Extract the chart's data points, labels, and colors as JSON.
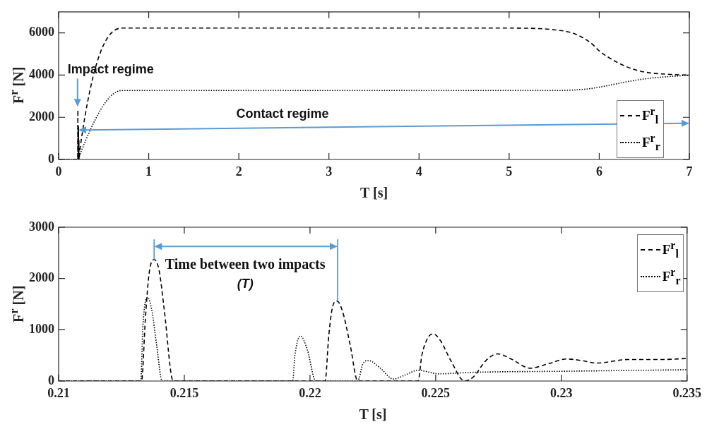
{
  "chart_data": [
    {
      "type": "line",
      "xlabel": "T [s]",
      "ylabel": "F$^{r}$ [N]",
      "xlim": [
        0,
        7
      ],
      "xticks": [
        0,
        1,
        2,
        3,
        4,
        5,
        6,
        7
      ],
      "ylim": [
        0,
        7000
      ],
      "yticks": [
        0,
        2000,
        4000,
        6000
      ],
      "legend": "right",
      "series": [
        {
          "name": "F$^{r}$$_{l}$",
          "color": "#000000",
          "line_style": "dashed",
          "x": [
            0,
            0.2,
            0.213,
            0.2138,
            0.2145,
            0.2206,
            0.2211,
            0.222,
            0.2243,
            0.2249,
            0.226,
            0.235,
            0.7,
            5.0,
            5.3,
            5.5,
            5.7,
            5.9,
            6.0,
            6.1,
            6.3,
            6.5,
            6.8,
            7
          ],
          "values": [
            0,
            0,
            0,
            2350,
            0,
            0,
            1560,
            0,
            0,
            920,
            0,
            440,
            6230,
            6230,
            6210,
            6150,
            6000,
            5550,
            5150,
            4850,
            4400,
            4150,
            4030,
            4000
          ]
        },
        {
          "name": "F$^{r}$$_{r}$",
          "color": "#000000",
          "line_style": "dotted",
          "x": [
            0,
            0.2133,
            0.2135,
            0.2141,
            0.2193,
            0.2196,
            0.2202,
            0.235,
            0.7,
            5.5,
            5.7,
            5.9,
            6.1,
            6.3,
            6.5,
            6.8,
            7
          ],
          "values": [
            0,
            0,
            1630,
            0,
            0,
            880,
            0,
            220,
            3270,
            3270,
            3290,
            3360,
            3510,
            3680,
            3820,
            3940,
            3990
          ]
        }
      ],
      "annotations": [
        {
          "text": "Impact regime",
          "x": 0.21,
          "y": 2500
        },
        "Contact regime"
      ]
    },
    {
      "type": "line",
      "xlabel": "T [s]",
      "ylabel": "F$^{r}$ [N]",
      "xlim": [
        0.21,
        0.235
      ],
      "xticks": [
        0.21,
        0.215,
        0.22,
        0.225,
        0.23,
        0.235
      ],
      "ylim": [
        0,
        3000
      ],
      "yticks": [
        0,
        1000,
        2000,
        3000
      ],
      "legend": "top right",
      "series": [
        {
          "name": "F$^{r}$$_{l}$",
          "color": "#000000",
          "line_style": "dashed",
          "x": [
            0.21,
            0.2133,
            0.21345,
            0.2136,
            0.2138,
            0.214,
            0.2142,
            0.21456,
            0.2206,
            0.22075,
            0.2209,
            0.22107,
            0.2213,
            0.2216,
            0.2219,
            0.2243,
            0.22445,
            0.2247,
            0.2249,
            0.2252,
            0.2256,
            0.22615,
            0.2265,
            0.227,
            0.22746,
            0.228,
            0.22876,
            0.2295,
            0.23021,
            0.2308,
            0.23138,
            0.23268,
            0.234,
            0.235
          ],
          "values": [
            0,
            0,
            1200,
            2100,
            2370,
            2150,
            1400,
            0,
            0,
            900,
            1450,
            1560,
            1350,
            700,
            0,
            0,
            500,
            850,
            920,
            780,
            400,
            0,
            80,
            400,
            530,
            430,
            250,
            340,
            430,
            400,
            350,
            420,
            420,
            440
          ]
        },
        {
          "name": "F$^{r}$$_{r}$",
          "color": "#000000",
          "line_style": "dotted",
          "x": [
            0.21,
            0.21327,
            0.21335,
            0.21354,
            0.2137,
            0.2139,
            0.21412,
            0.21931,
            0.2194,
            0.21962,
            0.2199,
            0.22023,
            0.2219,
            0.2221,
            0.22233,
            0.2228,
            0.22331,
            0.2238,
            0.22429,
            0.22513,
            0.22652,
            0.23,
            0.235
          ],
          "values": [
            0,
            0,
            1050,
            1630,
            1400,
            700,
            0,
            0,
            500,
            880,
            600,
            0,
            0,
            330,
            400,
            250,
            40,
            120,
            210,
            140,
            170,
            190,
            220
          ]
        }
      ],
      "annotations": [
        "Time between two impacts",
        "(T)"
      ]
    }
  ]
}
